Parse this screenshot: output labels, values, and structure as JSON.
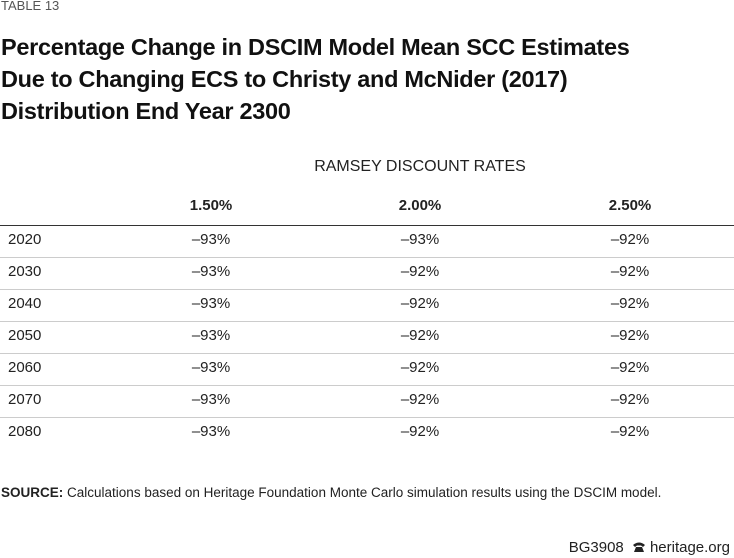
{
  "label": "TABLE 13",
  "title": [
    "Percentage Change in DSCIM Model Mean SCC Estimates",
    "Due to Changing ECS to Christy and McNider (2017)",
    "Distribution End Year 2300"
  ],
  "table": {
    "group_header": "RAMSEY DISCOUNT RATES",
    "columns": [
      "1.50%",
      "2.00%",
      "2.50%"
    ],
    "rows": [
      [
        "2020",
        "–93%",
        "–93%",
        "–92%"
      ],
      [
        "2030",
        "–93%",
        "–92%",
        "–92%"
      ],
      [
        "2040",
        "–93%",
        "–92%",
        "–92%"
      ],
      [
        "2050",
        "–93%",
        "–92%",
        "–92%"
      ],
      [
        "2060",
        "–93%",
        "–92%",
        "–92%"
      ],
      [
        "2070",
        "–93%",
        "–92%",
        "–92%"
      ],
      [
        "2080",
        "–93%",
        "–92%",
        "–92%"
      ]
    ]
  },
  "source": {
    "label": "SOURCE:",
    "text": "Calculations based on Heritage Foundation Monte Carlo simulation results using the DSCIM model."
  },
  "footer": {
    "code": "BG3908",
    "site": "heritage.org"
  }
}
